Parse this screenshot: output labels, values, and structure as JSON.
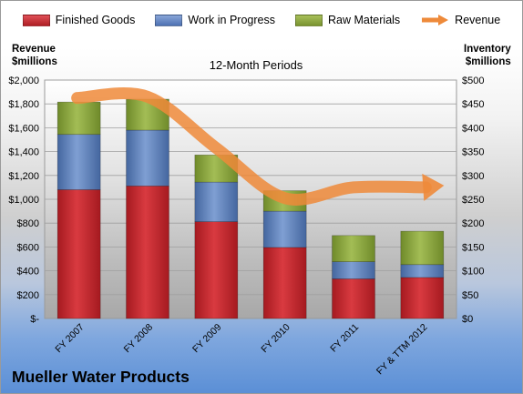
{
  "colors": {
    "finished_goods": "#c0272d",
    "work_in_progress": "#5a7fbf",
    "raw_materials": "#8aa33c",
    "revenue": "#ee8a3a"
  },
  "legend": {
    "finished_goods": "Finished Goods",
    "work_in_progress": "Work in Progress",
    "raw_materials": "Raw Materials",
    "revenue": "Revenue"
  },
  "left_axis_title": [
    "Revenue",
    "$millions"
  ],
  "right_axis_title": [
    "Inventory",
    "$millions"
  ],
  "subtitle": "12-Month Periods",
  "company": "Mueller Water Products",
  "chart_data": {
    "type": "bar",
    "stacked": true,
    "categories": [
      "FY 2007",
      "FY 2008",
      "FY 2009",
      "FY 2010",
      "FY 2011",
      "FY & TTM 2012"
    ],
    "series": [
      {
        "name": "Finished Goods",
        "axis": "right",
        "values": [
          270,
          278,
          203,
          149,
          83,
          86
        ]
      },
      {
        "name": "Work in Progress",
        "axis": "right",
        "values": [
          116,
          117,
          83,
          76,
          36,
          27
        ]
      },
      {
        "name": "Raw Materials",
        "axis": "right",
        "values": [
          68,
          65,
          57,
          43,
          55,
          70
        ]
      },
      {
        "name": "Revenue",
        "type": "line",
        "axis": "left",
        "values": [
          1850,
          1860,
          1430,
          1010,
          1100,
          1100
        ]
      }
    ],
    "left_axis": {
      "ylim": [
        0,
        2000
      ],
      "ticks": [
        "$-",
        "$200",
        "$400",
        "$600",
        "$800",
        "$1,000",
        "$1,200",
        "$1,400",
        "$1,600",
        "$1,800",
        "$2,000"
      ]
    },
    "right_axis": {
      "ylim": [
        0,
        500
      ],
      "ticks": [
        "$0",
        "$50",
        "$100",
        "$150",
        "$200",
        "$250",
        "$300",
        "$350",
        "$400",
        "$450",
        "$500"
      ]
    },
    "grid": true,
    "legend_position": "top"
  }
}
